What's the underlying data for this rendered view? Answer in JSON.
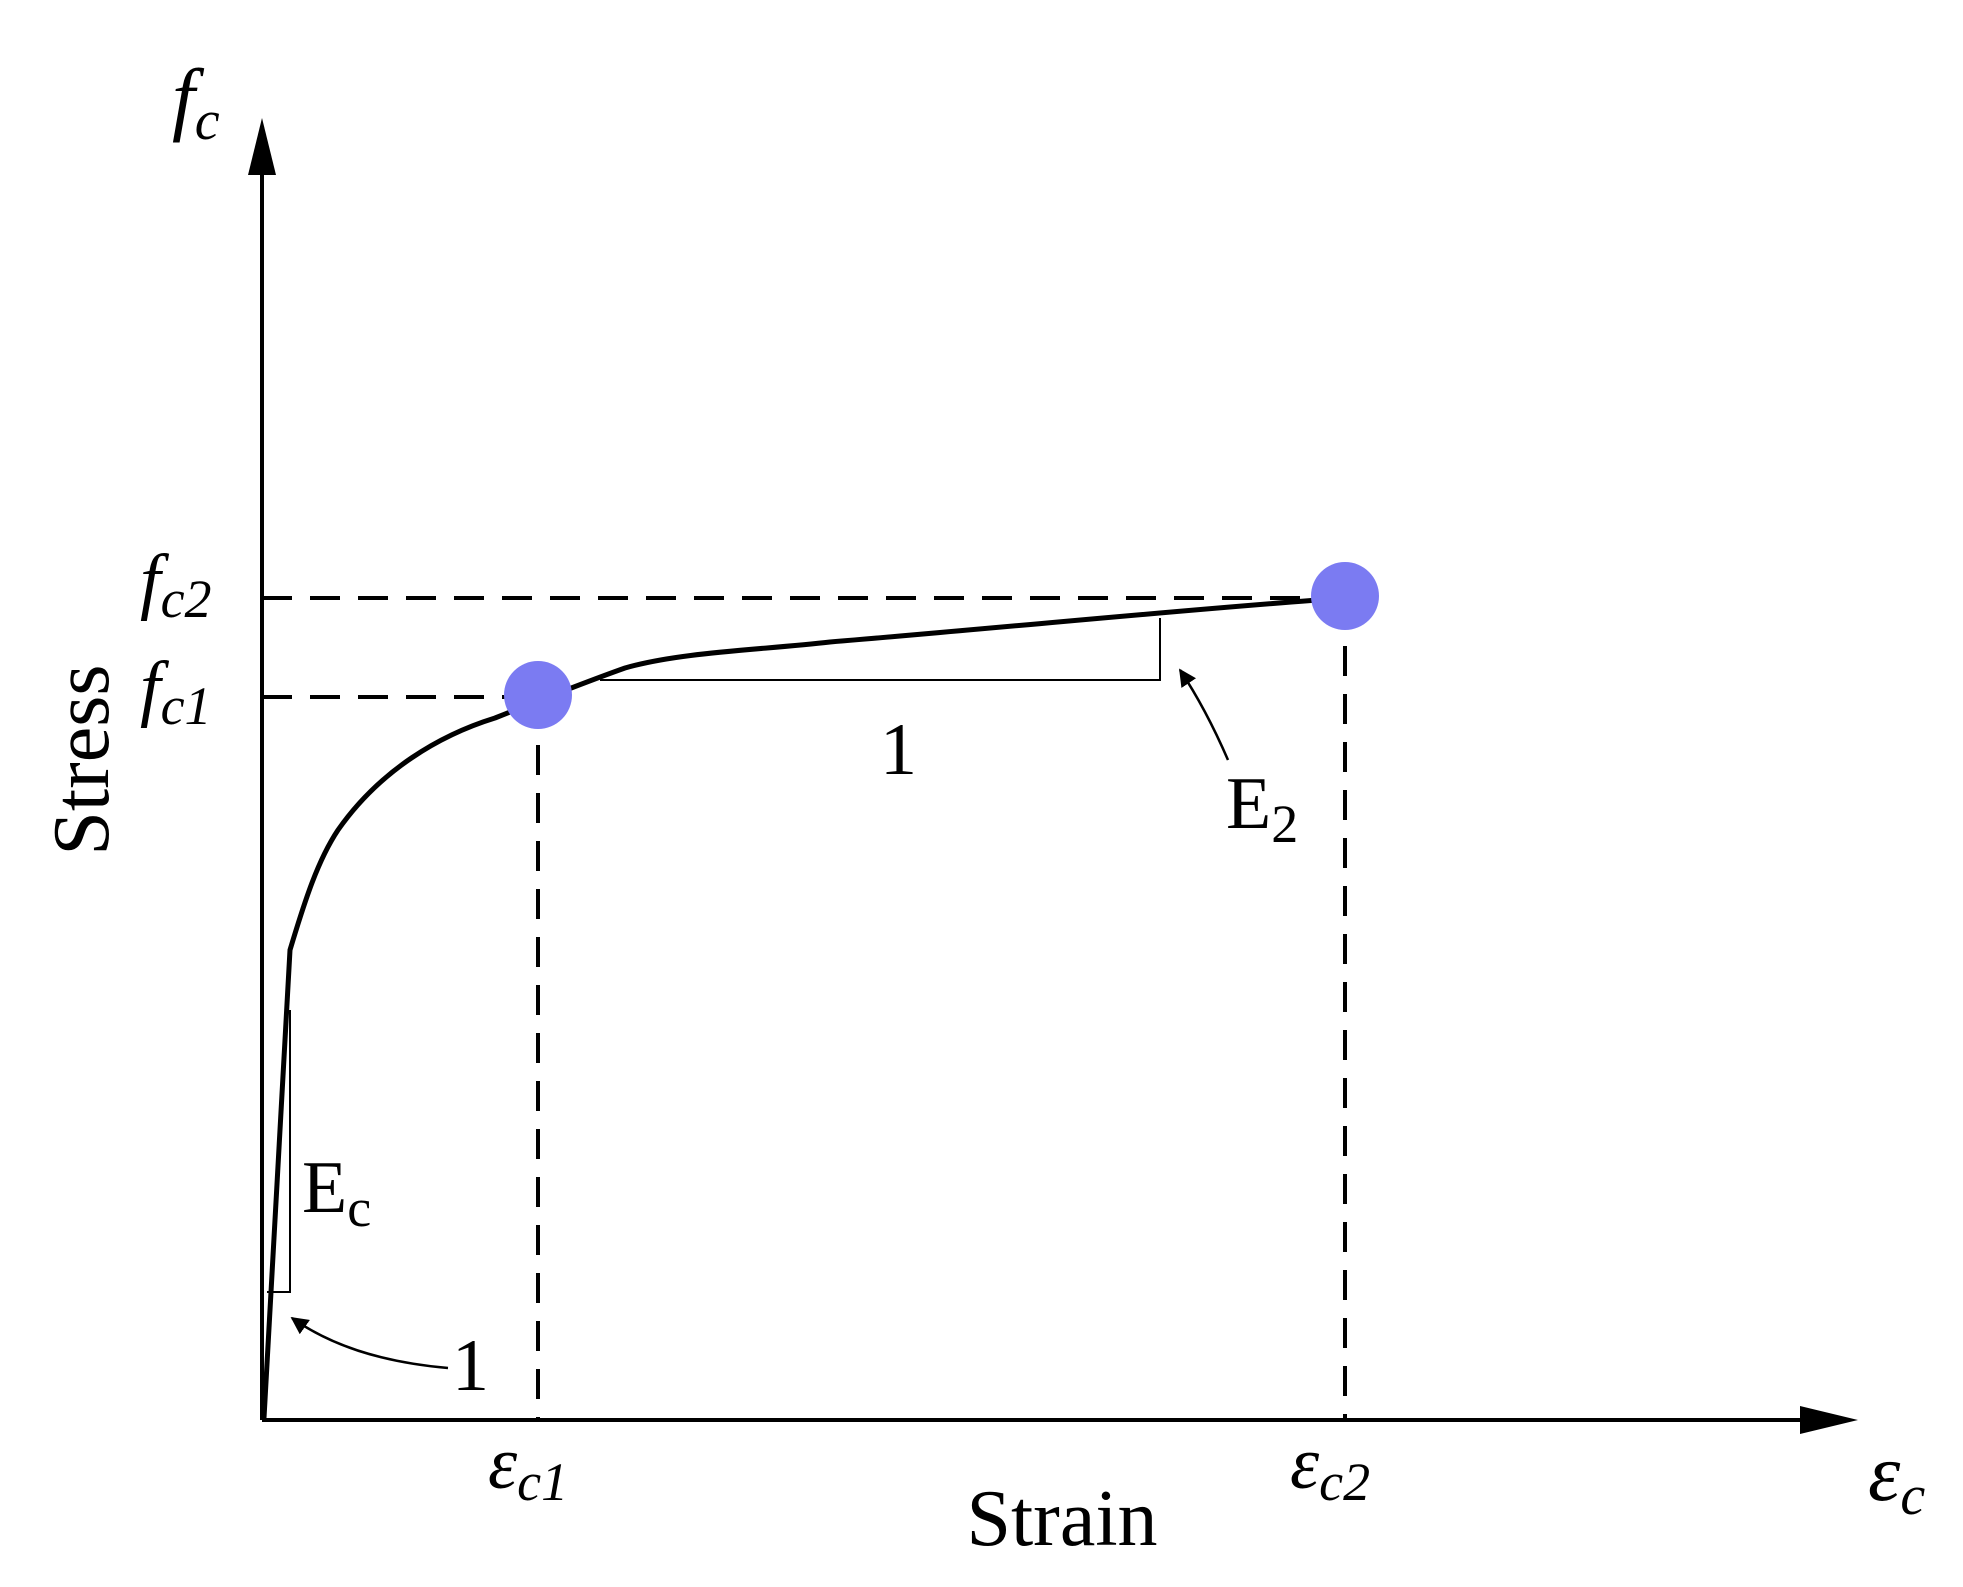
{
  "figure": {
    "y_axis_symbol": {
      "base": "f",
      "sub": "c"
    },
    "x_axis_symbol": {
      "base": "ε",
      "sub": "c"
    },
    "y_axis_label": "Stress",
    "x_axis_label": "Strain",
    "f_c2": {
      "base": "f",
      "sub": "c2"
    },
    "f_c1": {
      "base": "f",
      "sub": "c1"
    },
    "eps_c1": {
      "base": "ε",
      "sub": "c1"
    },
    "eps_c2": {
      "base": "ε",
      "sub": "c2"
    },
    "modulus_initial": {
      "base": "E",
      "sub": "c"
    },
    "modulus_second": {
      "base": "E",
      "sub": "2"
    },
    "slope_run_initial": "1",
    "slope_run_second": "1",
    "line_color": "#000000",
    "marker_color": "#7b7bf2"
  }
}
